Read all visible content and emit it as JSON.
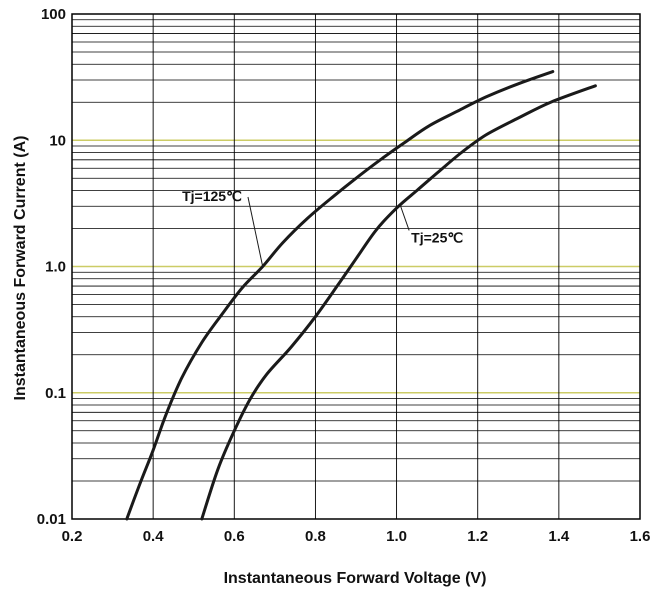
{
  "chart_data": {
    "type": "line",
    "xlabel": "Instantaneous Forward Voltage (V)",
    "ylabel": "Instantaneous Forward Current (A)",
    "xlim": [
      0.2,
      1.6
    ],
    "ylim": [
      0.01,
      100
    ],
    "yscale": "log",
    "grid": true,
    "x_ticks": [
      "0.2",
      "0.4",
      "0.6",
      "0.8",
      "1.0",
      "1.2",
      "1.4",
      "1.6"
    ],
    "y_ticks": [
      "0.01",
      "0.1",
      "1.0",
      "10",
      "100"
    ],
    "colors": {
      "curve": "#1a1a1a",
      "grid": "#000000",
      "decade_line": "#cccc66"
    },
    "series": [
      {
        "name": "Tj=125℃",
        "x": [
          0.335,
          0.37,
          0.4,
          0.43,
          0.47,
          0.52,
          0.57,
          0.62,
          0.67,
          0.72,
          0.78,
          0.84,
          0.9,
          0.96,
          1.02,
          1.08,
          1.15,
          1.22,
          1.3,
          1.385
        ],
        "y": [
          0.01,
          0.02,
          0.035,
          0.065,
          0.13,
          0.25,
          0.42,
          0.68,
          1.0,
          1.55,
          2.4,
          3.5,
          5.0,
          7.0,
          9.6,
          13,
          17,
          22,
          28,
          35
        ]
      },
      {
        "name": "Tj=25℃",
        "x": [
          0.52,
          0.56,
          0.6,
          0.64,
          0.68,
          0.74,
          0.8,
          0.86,
          0.9,
          0.95,
          1.0,
          1.05,
          1.1,
          1.16,
          1.22,
          1.3,
          1.38,
          1.49
        ],
        "y": [
          0.01,
          0.025,
          0.05,
          0.09,
          0.14,
          0.23,
          0.4,
          0.75,
          1.15,
          1.95,
          2.9,
          4.0,
          5.5,
          8.0,
          11,
          15,
          20,
          27
        ]
      }
    ],
    "annotations": [
      {
        "text": "Tj=125℃",
        "x": 0.545,
        "y": 3.3,
        "arrow_to": [
          0.67,
          1.0
        ]
      },
      {
        "text": "Tj=25℃",
        "x": 1.1,
        "y": 1.55,
        "arrow_to": [
          1.01,
          3.0
        ]
      }
    ]
  }
}
